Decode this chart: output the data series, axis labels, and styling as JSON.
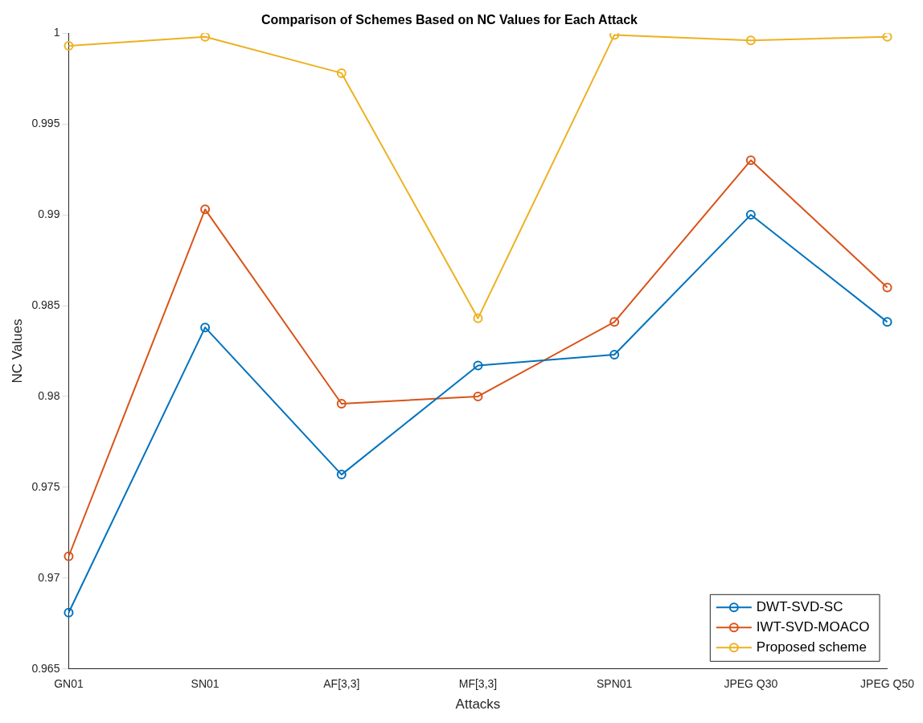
{
  "chart_data": {
    "type": "line",
    "title": "Comparison of Schemes Based on NC Values for Each Attack",
    "xlabel": "Attacks",
    "ylabel": "NC Values",
    "categories": [
      "GN01",
      "SN01",
      "AF[3,3]",
      "MF[3,3]",
      "SPN01",
      "JPEG Q30",
      "JPEG Q50"
    ],
    "series": [
      {
        "name": "DWT-SVD-SC",
        "color": "#0072bd",
        "values": [
          0.9681,
          0.9838,
          0.9757,
          0.9817,
          0.9823,
          0.99,
          0.9841
        ]
      },
      {
        "name": "IWT-SVD-MOACO",
        "color": "#d95319",
        "values": [
          0.9712,
          0.9903,
          0.9796,
          0.98,
          0.9841,
          0.993,
          0.986
        ]
      },
      {
        "name": "Proposed scheme",
        "color": "#edb120",
        "values": [
          0.9993,
          0.9998,
          0.9978,
          0.9843,
          0.9999,
          0.9996,
          0.9998
        ]
      }
    ],
    "ylim": [
      0.965,
      1
    ],
    "yticks": [
      0.965,
      0.97,
      0.975,
      0.98,
      0.985,
      0.99,
      0.995,
      1
    ],
    "grid": false,
    "legend": "bottom right",
    "marker": "circle",
    "line_style": "solid"
  }
}
